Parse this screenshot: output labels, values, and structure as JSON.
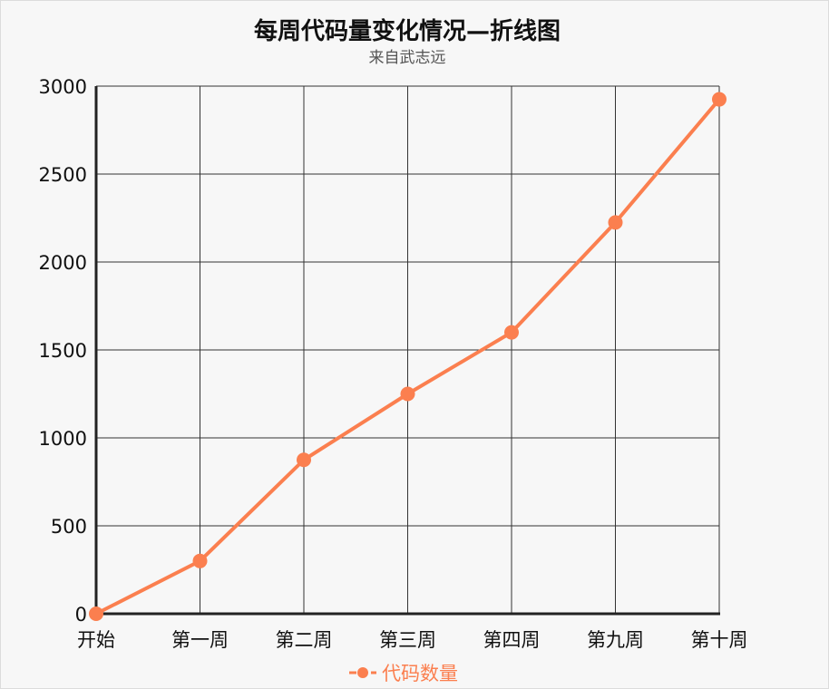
{
  "chart_data": {
    "type": "line",
    "title": "每周代码量变化情况—折线图",
    "subtitle": "来自武志远",
    "categories": [
      "开始",
      "第一周",
      "第二周",
      "第三周",
      "第四周",
      "第九周",
      "第十周"
    ],
    "series": [
      {
        "name": "代码数量",
        "values": [
          0,
          300,
          875,
          1250,
          1600,
          2225,
          2925
        ]
      }
    ],
    "ylim": [
      0,
      3000
    ],
    "yticks": [
      0,
      500,
      1000,
      1500,
      2000,
      2500,
      3000
    ],
    "grid": true,
    "legend_position": "bottom-center",
    "colors": {
      "series": "#fb7f4f",
      "grid": "#333333",
      "axis": "#222222"
    }
  }
}
